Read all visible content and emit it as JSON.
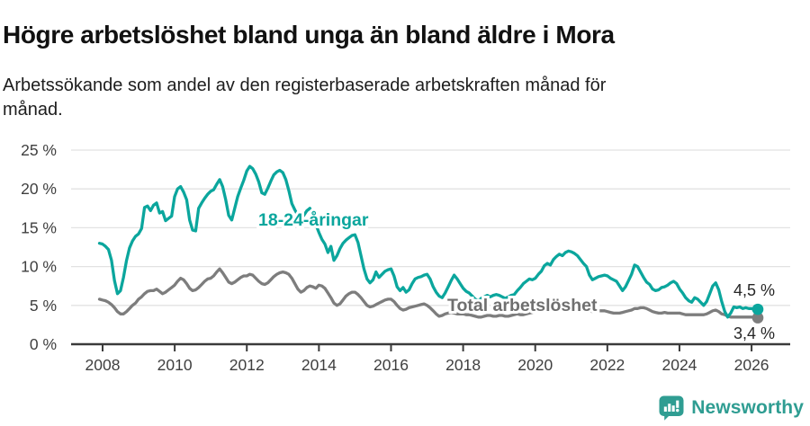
{
  "header": {
    "title": "Högre arbetslöshet bland unga än bland äldre i Mora",
    "subtitle": "Arbetssökande som andel av den registerbaserade arbetskraften månad för månad."
  },
  "footer": {
    "brand": "Newsworthy",
    "logo_icon": "bar-chart-speech-bubble-icon",
    "brand_color": "#2f9d92"
  },
  "chart_data": {
    "type": "line",
    "title": "Högre arbetslöshet bland unga än bland äldre i Mora",
    "xlabel": "",
    "ylabel": "",
    "ylim": [
      0,
      25
    ],
    "grid": "horizontal",
    "x_start": "2007-12",
    "x_end": "2026-03",
    "x_tick_labels": [
      "2008",
      "2010",
      "2012",
      "2014",
      "2016",
      "2018",
      "2020",
      "2022",
      "2024",
      "2026"
    ],
    "y_tick_values": [
      0,
      5,
      10,
      15,
      20,
      25
    ],
    "y_tick_labels": [
      "0 %",
      "5 %",
      "10 %",
      "15 %",
      "20 %",
      "25 %"
    ],
    "colors": {
      "young": "#0ba69d",
      "total": "#7d7d7d",
      "grid": "#e2e2e2",
      "axis": "#3a3a3a",
      "tick_text": "#3f3f3f",
      "end_label_text": "#262626",
      "total_label_text": "#6f6f6f"
    },
    "series": [
      {
        "name": "Total arbetslöshet",
        "end_label": "3,4 %",
        "values": [
          5.8,
          5.7,
          5.6,
          5.4,
          5.1,
          4.7,
          4.2,
          3.9,
          3.9,
          4.2,
          4.6,
          5.0,
          5.3,
          5.8,
          6.1,
          6.5,
          6.8,
          6.9,
          6.9,
          7.1,
          6.8,
          6.5,
          6.7,
          7.0,
          7.3,
          7.6,
          8.1,
          8.5,
          8.3,
          7.8,
          7.2,
          6.9,
          7.0,
          7.3,
          7.7,
          8.1,
          8.4,
          8.5,
          8.8,
          9.3,
          9.7,
          9.2,
          8.6,
          8.0,
          7.8,
          8.0,
          8.3,
          8.6,
          8.8,
          8.8,
          9.0,
          8.9,
          8.5,
          8.1,
          7.8,
          7.7,
          7.9,
          8.3,
          8.7,
          9.0,
          9.2,
          9.3,
          9.2,
          9.0,
          8.5,
          7.8,
          7.1,
          6.7,
          6.9,
          7.3,
          7.5,
          7.4,
          7.2,
          7.6,
          7.5,
          7.2,
          6.6,
          6.0,
          5.3,
          5.0,
          5.2,
          5.7,
          6.2,
          6.5,
          6.7,
          6.7,
          6.4,
          6.0,
          5.5,
          5.0,
          4.8,
          4.9,
          5.1,
          5.3,
          5.5,
          5.7,
          5.8,
          5.8,
          5.5,
          5.0,
          4.6,
          4.4,
          4.5,
          4.7,
          4.8,
          4.9,
          5.0,
          5.1,
          5.2,
          5.0,
          4.7,
          4.3,
          3.9,
          3.6,
          3.7,
          3.9,
          4.0,
          4.1,
          4.0,
          3.9,
          3.9,
          3.9,
          3.8,
          3.8,
          3.7,
          3.6,
          3.5,
          3.5,
          3.6,
          3.7,
          3.7,
          3.6,
          3.6,
          3.7,
          3.7,
          3.6,
          3.6,
          3.7,
          3.8,
          3.9,
          3.8,
          3.8,
          3.9,
          4.0,
          4.1,
          4.2,
          4.3,
          4.5,
          4.9,
          5.2,
          5.4,
          5.5,
          5.4,
          5.3,
          5.2,
          5.2,
          5.1,
          5.1,
          5.0,
          4.9,
          4.7,
          4.5,
          4.4,
          4.3,
          4.2,
          4.2,
          4.3,
          4.3,
          4.3,
          4.2,
          4.1,
          4.0,
          4.0,
          4.0,
          4.1,
          4.2,
          4.3,
          4.4,
          4.6,
          4.6,
          4.7,
          4.7,
          4.6,
          4.4,
          4.2,
          4.1,
          4.0,
          4.0,
          4.1,
          4.0,
          4.0,
          4.0,
          4.0,
          4.0,
          3.9,
          3.8,
          3.8,
          3.8,
          3.8,
          3.8,
          3.8,
          3.8,
          3.9,
          4.1,
          4.3,
          4.4,
          4.2,
          3.9,
          3.8,
          3.6,
          3.5,
          3.5,
          3.5,
          3.5,
          3.5,
          3.5,
          3.5,
          3.5,
          3.4,
          3.4
        ]
      },
      {
        "name": "18-24-åringar",
        "end_label": "4,5 %",
        "values": [
          13.0,
          12.9,
          12.6,
          12.2,
          10.8,
          8.2,
          6.5,
          6.9,
          8.6,
          10.8,
          12.4,
          13.3,
          13.9,
          14.2,
          14.9,
          17.6,
          17.8,
          17.2,
          17.9,
          18.2,
          16.9,
          17.1,
          15.9,
          16.2,
          16.5,
          19.0,
          20.0,
          20.3,
          19.6,
          18.6,
          16.0,
          14.7,
          14.6,
          17.5,
          18.2,
          18.8,
          19.3,
          19.7,
          19.9,
          20.6,
          21.2,
          20.3,
          18.6,
          16.6,
          16.0,
          17.5,
          19.0,
          20.1,
          21.1,
          22.3,
          22.9,
          22.6,
          21.9,
          20.9,
          19.5,
          19.3,
          20.1,
          21.0,
          21.8,
          22.2,
          22.4,
          22.1,
          21.2,
          19.8,
          18.1,
          17.3,
          16.6,
          16.1,
          16.6,
          17.2,
          17.5,
          16.8,
          15.4,
          14.4,
          13.5,
          12.9,
          11.8,
          12.6,
          10.8,
          11.4,
          12.3,
          13.0,
          13.4,
          13.7,
          14.0,
          14.1,
          13.1,
          11.4,
          9.7,
          8.4,
          7.9,
          8.3,
          9.3,
          8.6,
          9.0,
          9.4,
          9.6,
          9.7,
          8.8,
          7.4,
          6.9,
          7.3,
          6.7,
          7.0,
          7.8,
          8.4,
          8.6,
          8.7,
          8.9,
          9.0,
          8.4,
          7.4,
          6.7,
          6.2,
          6.0,
          6.6,
          7.4,
          8.2,
          8.9,
          8.4,
          7.8,
          7.2,
          6.8,
          6.6,
          6.2,
          5.8,
          5.6,
          5.9,
          6.1,
          6.3,
          6.1,
          6.3,
          6.4,
          6.3,
          6.1,
          5.9,
          6.1,
          6.3,
          6.4,
          6.9,
          7.3,
          7.8,
          8.1,
          8.4,
          8.3,
          8.5,
          9.0,
          9.4,
          10.1,
          10.4,
          10.2,
          10.9,
          11.3,
          11.6,
          11.4,
          11.8,
          12.0,
          11.9,
          11.7,
          11.4,
          10.9,
          10.4,
          10.0,
          8.9,
          8.3,
          8.5,
          8.7,
          8.8,
          8.9,
          8.8,
          8.5,
          8.3,
          8.1,
          7.5,
          6.9,
          7.4,
          8.2,
          9.0,
          10.2,
          10.0,
          9.3,
          8.6,
          8.0,
          7.7,
          7.1,
          6.9,
          7.0,
          7.3,
          7.4,
          7.6,
          7.9,
          8.1,
          7.8,
          7.1,
          6.6,
          6.0,
          5.6,
          5.4,
          6.0,
          5.8,
          5.4,
          5.0,
          5.5,
          6.5,
          7.5,
          7.9,
          7.0,
          5.5,
          4.2,
          3.5,
          4.0,
          4.8,
          4.7,
          4.8,
          4.6,
          4.7,
          4.6,
          4.6,
          4.4,
          4.5
        ]
      }
    ],
    "legend": "inline-labels"
  }
}
